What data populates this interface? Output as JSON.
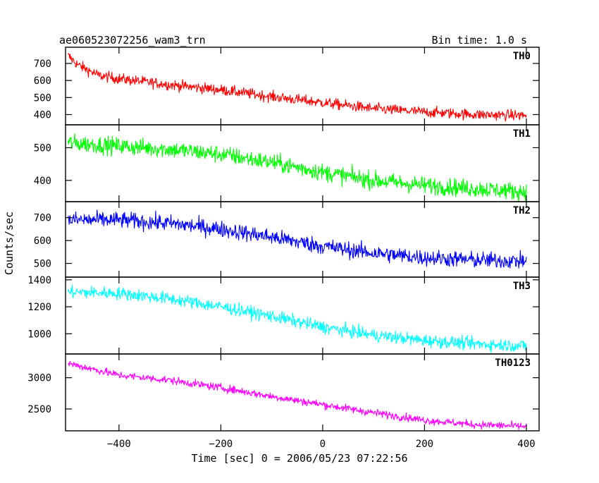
{
  "header": {
    "title": "ae060523072256_wam3_trn",
    "bin_time": "Bin time: 1.0 s"
  },
  "axes": {
    "ylabel": "Counts/sec",
    "xlabel": "Time [sec] 0 = 2006/05/23 07:22:56"
  },
  "chart_data": {
    "type": "line",
    "title": "ae060523072256_wam3_trn",
    "xlabel": "Time [sec] 0 = 2006/05/23 07:22:56",
    "ylabel": "Counts/sec",
    "xlim": [
      -505,
      425
    ],
    "x_ticks": [
      -400,
      -200,
      0,
      200,
      400
    ],
    "x_tick_labels": [
      "−400",
      "−200",
      "0",
      "200",
      "400"
    ],
    "bin_time_s": 1.0,
    "x_step": 1,
    "panels": [
      {
        "name": "TH0",
        "color": "#ff0000",
        "ylim": [
          340,
          795
        ],
        "y_ticks": [
          400,
          500,
          600,
          700
        ],
        "trend_x": [
          -500,
          -480,
          -440,
          -400,
          -300,
          -200,
          -100,
          0,
          100,
          200,
          300,
          400
        ],
        "trend_y": [
          745,
          690,
          630,
          610,
          575,
          545,
          505,
          470,
          435,
          415,
          400,
          395
        ],
        "noise_amplitude": 28
      },
      {
        "name": "TH1",
        "color": "#00ff00",
        "ylim": [
          335,
          570
        ],
        "y_ticks": [
          400,
          500
        ],
        "trend_x": [
          -500,
          -400,
          -300,
          -200,
          -100,
          0,
          100,
          200,
          300,
          400
        ],
        "trend_y": [
          515,
          505,
          495,
          480,
          455,
          425,
          400,
          385,
          375,
          365
        ],
        "noise_amplitude": 24
      },
      {
        "name": "TH2",
        "color": "#0000ff",
        "ylim": [
          440,
          770
        ],
        "y_ticks": [
          500,
          600,
          700
        ],
        "trend_x": [
          -500,
          -400,
          -300,
          -200,
          -100,
          0,
          100,
          200,
          300,
          400
        ],
        "trend_y": [
          690,
          690,
          675,
          650,
          615,
          575,
          545,
          525,
          515,
          510
        ],
        "noise_amplitude": 32
      },
      {
        "name": "TH3",
        "color": "#00ffff",
        "ylim": [
          850,
          1420
        ],
        "y_ticks": [
          1000,
          1200,
          1400
        ],
        "trend_x": [
          -500,
          -400,
          -300,
          -200,
          -100,
          0,
          100,
          200,
          300,
          400
        ],
        "trend_y": [
          1310,
          1300,
          1260,
          1200,
          1130,
          1050,
          990,
          950,
          925,
          910
        ],
        "noise_amplitude": 42
      },
      {
        "name": "TH0123",
        "color": "#ff00ff",
        "ylim": [
          2150,
          3380
        ],
        "y_ticks": [
          2500,
          3000
        ],
        "trend_x": [
          -500,
          -400,
          -300,
          -200,
          -100,
          0,
          100,
          200,
          300,
          400
        ],
        "trend_y": [
          3230,
          3040,
          2960,
          2840,
          2700,
          2570,
          2440,
          2320,
          2250,
          2220
        ],
        "noise_amplitude": 55
      }
    ]
  }
}
